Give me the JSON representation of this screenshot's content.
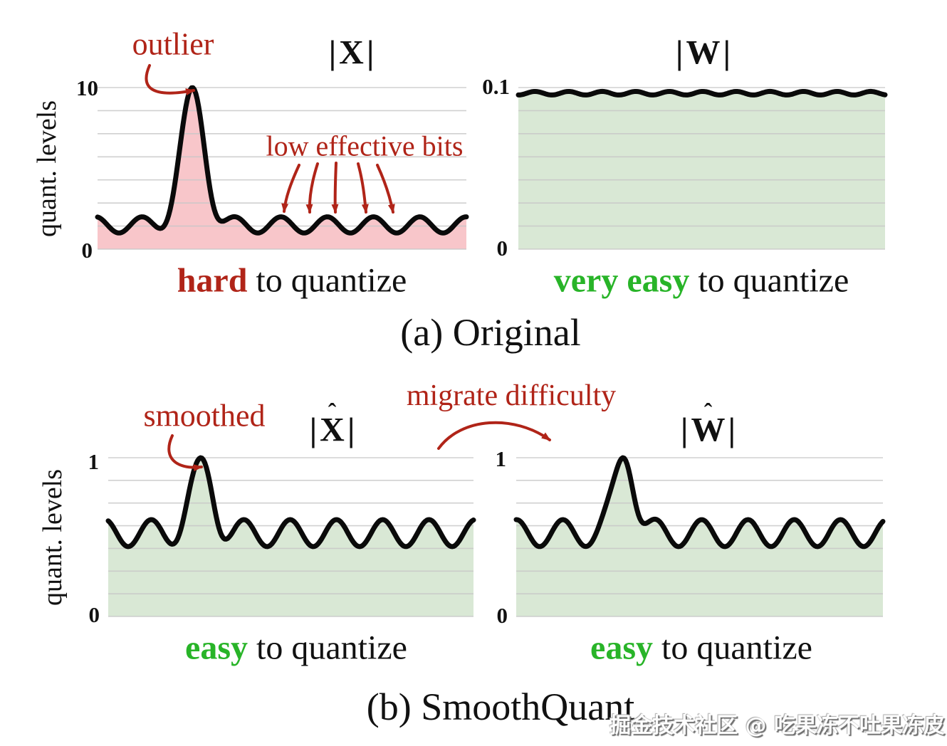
{
  "figure": {
    "ylabel": "quant. levels",
    "section_a_label": "(a) Original",
    "section_b_label": "(b) SmoothQuant",
    "watermark": "掘金技术社区 @ 吃果冻不吐果冻皮",
    "colors": {
      "annotation_red": "#b02418",
      "emphasis_green": "#28b428",
      "activation_fill_pink": "#f8c6ca",
      "weight_fill_green": "#d9e8d5",
      "curve_black": "#0a0a0a",
      "gridline_gray": "#c8c8c8"
    }
  },
  "annotations": {
    "outlier": "outlier",
    "low_effective_bits": "low effective bits",
    "smoothed": "smoothed",
    "migrate_difficulty": "migrate difficulty"
  },
  "panels": {
    "xa": {
      "bar": "|",
      "letter": "X",
      "hat": "",
      "tick_top": "10",
      "tick_bottom": "0",
      "caption_em": "hard",
      "caption_rest": " to quantize"
    },
    "wa": {
      "bar": "|",
      "letter": "W",
      "hat": "",
      "tick_top": "0.1",
      "tick_bottom": "0",
      "caption_em": "very easy",
      "caption_rest": " to quantize"
    },
    "xb": {
      "bar": "|",
      "letter": "X",
      "hat": "ˆ",
      "tick_top": "1",
      "tick_bottom": "0",
      "caption_em": "easy",
      "caption_rest": " to quantize"
    },
    "wb": {
      "bar": "|",
      "letter": "W",
      "hat": "ˆ",
      "tick_top": "1",
      "tick_bottom": "0",
      "caption_em": "easy",
      "caption_rest": " to quantize"
    }
  },
  "chart_data": [
    {
      "id": "activation_original",
      "type": "area",
      "title": "|X|",
      "ylabel": "quant. levels",
      "ylim": [
        0,
        10
      ],
      "yticks": [
        10,
        0
      ],
      "grid_intervals": 7,
      "wave": {
        "min": 1.0,
        "max": 2.0,
        "period_frac": 0.1255,
        "trough_start_frac": 0.058
      },
      "spike": {
        "x_frac": 0.257,
        "peak": 10,
        "sigma_frac": 0.031
      },
      "fill": "#f8c6ca",
      "caption": "hard to quantize",
      "description": "activation magnitudes with a large outlier spike reaching 10 over a baseline oscillating between 1 and 2"
    },
    {
      "id": "weight_original",
      "type": "area",
      "title": "|W|",
      "ylabel": "",
      "ylim": [
        0,
        0.1
      ],
      "yticks": [
        0.1,
        0
      ],
      "grid_intervals": 7,
      "wave": {
        "min": 0.0954,
        "max": 0.0976,
        "period_frac": 0.0915,
        "trough_start_frac": 0.0
      },
      "spike": null,
      "fill": "#d9e8d5",
      "caption": "very easy to quantize",
      "description": "weight magnitudes nearly flat just below 0.1"
    },
    {
      "id": "activation_smoothed",
      "type": "area",
      "title": "|X̂|",
      "ylabel": "quant. levels",
      "ylim": [
        0,
        1
      ],
      "yticks": [
        1,
        0
      ],
      "grid_intervals": 7,
      "wave": {
        "min": 0.44,
        "max": 0.61,
        "period_frac": 0.1267,
        "trough_start_frac": 0.0546
      },
      "spike": {
        "x_frac": 0.2534,
        "peak": 1,
        "sigma_frac": 0.028
      },
      "fill": "#d9e8d5",
      "caption": "easy to quantize",
      "description": "smoothed activation magnitudes oscillating around 0.5 with a mild peak at 1"
    },
    {
      "id": "weight_migrated",
      "type": "area",
      "title": "|Ŵ|",
      "ylabel": "",
      "ylim": [
        0,
        1
      ],
      "yticks": [
        1,
        0
      ],
      "grid_intervals": 7,
      "wave": {
        "min": 0.44,
        "max": 0.61,
        "period_frac": 0.1262,
        "trough_start_frac": 0.0641
      },
      "spike": {
        "x_frac": 0.2913,
        "peak": 1,
        "sigma_frac": 0.028
      },
      "fill": "#d9e8d5",
      "caption": "easy to quantize",
      "description": "weight magnitudes after difficulty migration, oscillating around 0.5 with a mild peak at 1"
    }
  ]
}
